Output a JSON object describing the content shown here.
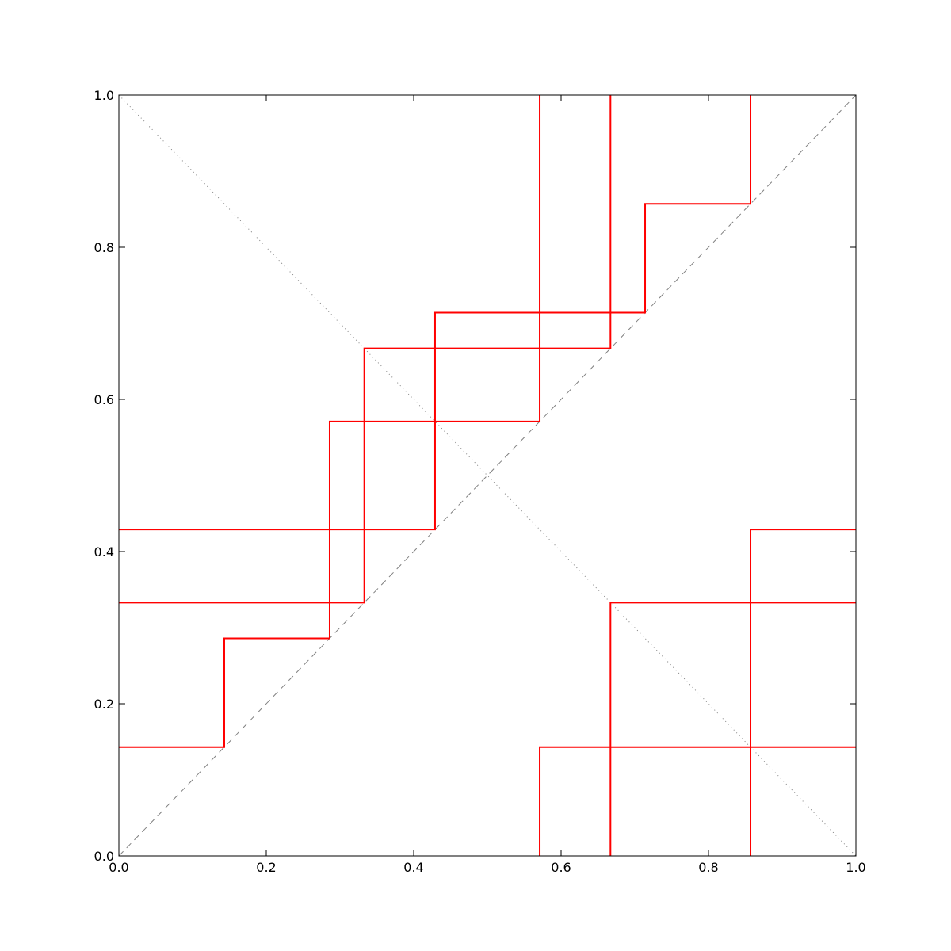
{
  "chart_data": {
    "type": "line",
    "xlim": [
      0,
      1
    ],
    "ylim": [
      0,
      1
    ],
    "xticks": [
      {
        "value": 0,
        "label": "0.0"
      },
      0.2,
      0.4,
      0.6,
      0.8,
      {
        "value": 1,
        "label": "1.0"
      }
    ],
    "yticks": [
      {
        "value": 0,
        "label": "0.0"
      },
      0.2,
      0.4,
      0.6,
      0.8,
      {
        "value": 1,
        "label": "1.0"
      }
    ],
    "grid": false,
    "series": [
      {
        "color": "#808080",
        "linestyle": "dashed",
        "x": [
          0,
          1
        ],
        "values": [
          0,
          1
        ]
      },
      {
        "color": "#808080",
        "linestyle": "dotted",
        "x": [
          0,
          1
        ],
        "values": [
          1,
          0
        ]
      },
      {
        "color": "#ff0000",
        "linestyle": "solid",
        "x": [
          0,
          0.143,
          0.143,
          0.286,
          0.286,
          0.571,
          0.571,
          null,
          0.571,
          0.571,
          1
        ],
        "values": [
          0.143,
          0.143,
          0.286,
          0.286,
          0.571,
          0.571,
          1,
          null,
          0,
          0.143,
          0.143
        ]
      },
      {
        "color": "#ff0000",
        "linestyle": "solid",
        "x": [
          0,
          0.429,
          0.429,
          0.714,
          0.714,
          0.857,
          0.857,
          null,
          0.857,
          0.857,
          1
        ],
        "values": [
          0.429,
          0.429,
          0.714,
          0.714,
          0.857,
          0.857,
          1,
          null,
          0,
          0.429,
          0.429
        ]
      },
      {
        "color": "#ff0000",
        "linestyle": "solid",
        "x": [
          0,
          0.333,
          0.333,
          0.667,
          0.667,
          null,
          0.667,
          0.667,
          1
        ],
        "values": [
          0.333,
          0.333,
          0.667,
          0.667,
          1,
          null,
          0,
          0.333,
          0.333
        ]
      }
    ]
  }
}
